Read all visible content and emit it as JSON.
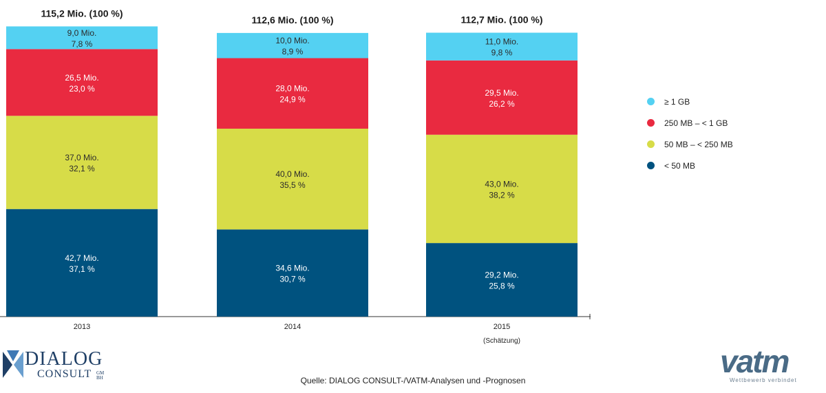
{
  "chart_data": {
    "type": "bar",
    "stacked": true,
    "categories": [
      "2013",
      "2014",
      "2015"
    ],
    "category_notes": [
      "",
      "",
      "(Schätzung)"
    ],
    "totals": [
      "115,2 Mio. (100 %)",
      "112,6 Mio. (100 %)",
      "112,7 Mio. (100 %)"
    ],
    "total_values": [
      115.2,
      112.6,
      112.7
    ],
    "series": [
      {
        "name": "< 50 MB",
        "legend": "< 50 MB",
        "color": "#00527f",
        "values": [
          42.7,
          34.6,
          29.2
        ],
        "percent": [
          37.1,
          30.7,
          25.8
        ],
        "labels": [
          [
            "42,7 Mio.",
            "37,1 %"
          ],
          [
            "34,6 Mio.",
            "30,7 %"
          ],
          [
            "29,2 Mio.",
            "25,8 %"
          ]
        ]
      },
      {
        "name": "50 MB – < 250 MB",
        "legend": "50 MB – < 250 MB",
        "color": "#d7dc48",
        "values": [
          37.0,
          40.0,
          43.0
        ],
        "percent": [
          32.1,
          35.5,
          38.2
        ],
        "labels": [
          [
            "37,0 Mio.",
            "32,1 %"
          ],
          [
            "40,0 Mio.",
            "35,5 %"
          ],
          [
            "43,0 Mio.",
            "38,2 %"
          ]
        ]
      },
      {
        "name": "250 MB – < 1 GB",
        "legend": "250 MB – < 1 GB",
        "color": "#e92a40",
        "values": [
          26.5,
          28.0,
          29.5
        ],
        "percent": [
          23.0,
          24.9,
          26.2
        ],
        "labels": [
          [
            "26,5 Mio.",
            "23,0 %"
          ],
          [
            "28,0 Mio.",
            "24,9 %"
          ],
          [
            "29,5 Mio.",
            "26,2 %"
          ]
        ]
      },
      {
        "name": "≥ 1 GB",
        "legend": "≥ 1 GB",
        "color": "#54d1f2",
        "values": [
          9.0,
          10.0,
          11.0
        ],
        "percent": [
          7.8,
          8.9,
          9.8
        ],
        "labels": [
          [
            "9,0 Mio.",
            "7,8 %"
          ],
          [
            "10,0 Mio.",
            "8,9 %"
          ],
          [
            "11,0 Mio.",
            "9,8 %"
          ]
        ]
      }
    ],
    "legend_position": "right",
    "grid": false
  },
  "legend": {
    "items": [
      {
        "label": "≥ 1 GB",
        "color": "#54d1f2"
      },
      {
        "label": "250 MB – < 1 GB",
        "color": "#e92a40"
      },
      {
        "label": "50 MB – < 250 MB",
        "color": "#d7dc48"
      },
      {
        "label": "< 50 MB",
        "color": "#00527f"
      }
    ]
  },
  "source": "Quelle: DIALOG CONSULT-/VATM-Analysen und -Prognosen",
  "logos": {
    "dialog": {
      "line1": "DIALOG",
      "line2": "CONSULT",
      "suffix": "GM BH"
    },
    "vatm": {
      "word": "vatm",
      "tagline": "Wettbewerb verbindet"
    }
  }
}
